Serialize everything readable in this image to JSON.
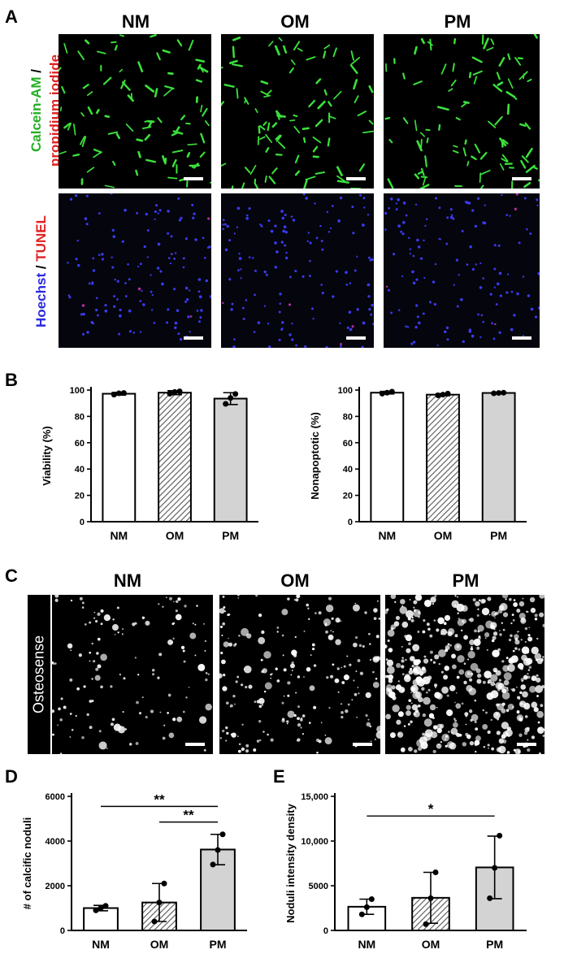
{
  "panel_letters": {
    "a": "A",
    "b": "B",
    "c": "C",
    "d": "D",
    "e": "E"
  },
  "groups": [
    "NM",
    "OM",
    "PM"
  ],
  "panel_a": {
    "row1_label_part1": "Calcein-AM",
    "row1_label_sep": " /",
    "row1_label_part2": "propidium iodide",
    "row2_label_part1": "Hoechst",
    "row2_label_sep": " / ",
    "row2_label_part2": "TUNEL",
    "colors": {
      "calcein": "#22b022",
      "pi": "#e02020",
      "hoechst": "#2a2adf",
      "tunel": "#e02020"
    }
  },
  "panel_c": {
    "side_label": "Osteosense"
  },
  "colors": {
    "bar_nm": "#ffffff",
    "bar_om_hatch": "#555555",
    "bar_pm": "#d3d3d3"
  },
  "chart_data": [
    {
      "id": "B-left",
      "type": "bar",
      "categories": [
        "NM",
        "OM",
        "PM"
      ],
      "values": [
        97.2,
        98.0,
        93.5
      ],
      "error": [
        1.0,
        1.5,
        4.5
      ],
      "points": [
        [
          96.5,
          97.5,
          97.8
        ],
        [
          97.2,
          98.5,
          99.0
        ],
        [
          89.5,
          94.0,
          97.0
        ]
      ],
      "ylabel": "Viability (%)",
      "ylim": [
        0,
        100
      ],
      "yticks": [
        "0",
        "20",
        "40",
        "60",
        "80",
        "100"
      ],
      "ytick_values": [
        0,
        20,
        40,
        60,
        80,
        100
      ],
      "significance": []
    },
    {
      "id": "B-right",
      "type": "bar",
      "categories": [
        "NM",
        "OM",
        "PM"
      ],
      "values": [
        98.0,
        96.5,
        97.8
      ],
      "error": [
        1.0,
        0.8,
        0.3
      ],
      "points": [
        [
          97.3,
          98.0,
          98.8
        ],
        [
          96.0,
          96.5,
          97.3
        ],
        [
          97.5,
          97.8,
          98.0
        ]
      ],
      "ylabel": "Nonapoptotic (%)",
      "ylim": [
        0,
        100
      ],
      "yticks": [
        "0",
        "20",
        "40",
        "60",
        "80",
        "100"
      ],
      "ytick_values": [
        0,
        20,
        40,
        60,
        80,
        100
      ],
      "significance": []
    },
    {
      "id": "D",
      "type": "bar",
      "categories": [
        "NM",
        "OM",
        "PM"
      ],
      "values": [
        1000,
        1250,
        3620
      ],
      "error": [
        120,
        850,
        680
      ],
      "points": [
        [
          900,
          1000,
          1100
        ],
        [
          400,
          1250,
          2100
        ],
        [
          2950,
          3600,
          4300
        ]
      ],
      "ylabel": "# of calcific noduli",
      "ylim": [
        0,
        6000
      ],
      "yticks": [
        "0",
        "2000",
        "4000",
        "6000"
      ],
      "ytick_values": [
        0,
        2000,
        4000,
        6000
      ],
      "significance": [
        {
          "from": 0,
          "to": 2,
          "label": "**",
          "y": 5550
        },
        {
          "from": 1,
          "to": 2,
          "label": "**",
          "y": 4850
        }
      ]
    },
    {
      "id": "E",
      "type": "bar",
      "categories": [
        "NM",
        "OM",
        "PM"
      ],
      "values": [
        2650,
        3650,
        7050
      ],
      "error": [
        850,
        2850,
        3500
      ],
      "points": [
        [
          1800,
          2600,
          3500
        ],
        [
          700,
          3600,
          6500
        ],
        [
          3600,
          7000,
          10600
        ]
      ],
      "ylabel": "Noduli intensity density",
      "ylim": [
        0,
        15000
      ],
      "yticks": [
        "0",
        "5000",
        "10,000",
        "15,000"
      ],
      "ytick_values": [
        0,
        5000,
        10000,
        15000
      ],
      "significance": [
        {
          "from": 0,
          "to": 2,
          "label": "*",
          "y": 12800
        }
      ]
    }
  ]
}
